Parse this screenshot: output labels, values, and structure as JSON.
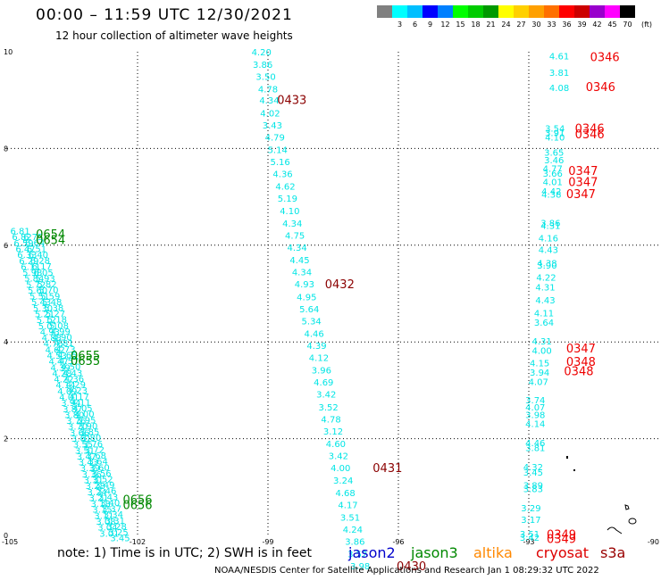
{
  "title": "00:00 – 11:59 UTC 12/30/2021",
  "subtitle": "12 hour collection of altimeter wave heights",
  "colorbar": {
    "unit": "(ft)",
    "labels": [
      "",
      "3",
      "6",
      "9",
      "12",
      "15",
      "18",
      "21",
      "24",
      "27",
      "30",
      "33",
      "36",
      "39",
      "42",
      "45",
      "70"
    ],
    "colors": [
      "#808080",
      "#00ffff",
      "#00bfff",
      "#0000ff",
      "#0080ff",
      "#00ff00",
      "#00cc00",
      "#009900",
      "#ffff00",
      "#ffd000",
      "#ffa000",
      "#ff7000",
      "#ff0000",
      "#cc0000",
      "#9900cc",
      "#ff00ff",
      "#000000"
    ]
  },
  "axes": {
    "x_ticks": [
      "-105",
      "-102",
      "-99",
      "-96",
      "-93",
      "-90"
    ],
    "y_ticks": [
      "0",
      "2",
      "4",
      "6",
      "8",
      "10"
    ],
    "x_range": [
      -105,
      -90
    ],
    "y_range": [
      0,
      10
    ]
  },
  "note": "note: 1) Time is in UTC; 2) SWH is in feet",
  "missions": [
    {
      "name": "jason2",
      "color": "#0000cc"
    },
    {
      "name": "jason3",
      "color": "#008800"
    },
    {
      "name": "altika",
      "color": "#ff8800"
    },
    {
      "name": "cryosat",
      "color": "#dd0000"
    },
    {
      "name": "s3a",
      "color": "#990000"
    }
  ],
  "footer": "NOAA/NESDIS Center for Satellite Applications and Research   Jan  1 08:29:32 UTC 2022",
  "tracks": [
    {
      "id": "track-middle",
      "color": "#00e5e5",
      "points": [
        {
          "lon": -99.15,
          "lat": 10.0,
          "v": "4.20"
        },
        {
          "lon": -99.12,
          "lat": 9.74,
          "v": "3.86"
        },
        {
          "lon": -99.05,
          "lat": 9.49,
          "v": "3.50"
        },
        {
          "lon": -99.0,
          "lat": 9.23,
          "v": "4.78"
        },
        {
          "lon": -98.97,
          "lat": 9.0,
          "v": "4.34"
        },
        {
          "lon": -98.95,
          "lat": 8.74,
          "v": "4.02"
        },
        {
          "lon": -98.9,
          "lat": 8.49,
          "v": "3.43"
        },
        {
          "lon": -98.84,
          "lat": 8.24,
          "v": "4.79"
        },
        {
          "lon": -98.78,
          "lat": 7.98,
          "v": "5.14"
        },
        {
          "lon": -98.72,
          "lat": 7.73,
          "v": "5.16"
        },
        {
          "lon": -98.66,
          "lat": 7.48,
          "v": "4.36"
        },
        {
          "lon": -98.6,
          "lat": 7.22,
          "v": "4.62"
        },
        {
          "lon": -98.55,
          "lat": 6.97,
          "v": "5.19"
        },
        {
          "lon": -98.5,
          "lat": 6.72,
          "v": "4.10"
        },
        {
          "lon": -98.44,
          "lat": 6.46,
          "v": "4.34"
        },
        {
          "lon": -98.38,
          "lat": 6.21,
          "v": "4.75"
        },
        {
          "lon": -98.33,
          "lat": 5.96,
          "v": "4.34"
        },
        {
          "lon": -98.27,
          "lat": 5.7,
          "v": "4.45"
        },
        {
          "lon": -98.22,
          "lat": 5.45,
          "v": "4.34"
        },
        {
          "lon": -98.16,
          "lat": 5.2,
          "v": "4.93"
        },
        {
          "lon": -98.11,
          "lat": 4.94,
          "v": "4.95"
        },
        {
          "lon": -98.05,
          "lat": 4.69,
          "v": "5.64"
        },
        {
          "lon": -98.0,
          "lat": 4.44,
          "v": "5.34"
        },
        {
          "lon": -97.94,
          "lat": 4.18,
          "v": "4.46"
        },
        {
          "lon": -97.88,
          "lat": 3.93,
          "v": "4.39"
        },
        {
          "lon": -97.83,
          "lat": 3.68,
          "v": "4.12"
        },
        {
          "lon": -97.77,
          "lat": 3.42,
          "v": "3.96"
        },
        {
          "lon": -97.72,
          "lat": 3.17,
          "v": "4.69"
        },
        {
          "lon": -97.66,
          "lat": 2.92,
          "v": "3.42"
        },
        {
          "lon": -97.61,
          "lat": 2.66,
          "v": "3.52"
        },
        {
          "lon": -97.55,
          "lat": 2.41,
          "v": "4.78"
        },
        {
          "lon": -97.5,
          "lat": 2.16,
          "v": "3.12"
        },
        {
          "lon": -97.44,
          "lat": 1.9,
          "v": "4.60"
        },
        {
          "lon": -97.38,
          "lat": 1.65,
          "v": "3.42"
        },
        {
          "lon": -97.33,
          "lat": 1.4,
          "v": "4.00"
        },
        {
          "lon": -97.27,
          "lat": 1.14,
          "v": "3.24"
        },
        {
          "lon": -97.22,
          "lat": 0.89,
          "v": "4.68"
        },
        {
          "lon": -97.16,
          "lat": 0.64,
          "v": "4.17"
        },
        {
          "lon": -97.11,
          "lat": 0.38,
          "v": "3.51"
        },
        {
          "lon": -97.05,
          "lat": 0.13,
          "v": "4.24"
        },
        {
          "lon": -97.0,
          "lat": -0.12,
          "v": "3.86"
        },
        {
          "lon": -96.94,
          "lat": -0.38,
          "v": "3.52"
        },
        {
          "lon": -96.88,
          "lat": -0.63,
          "v": "3.98"
        }
      ]
    },
    {
      "id": "track-right",
      "color": "#00e5e5",
      "points": [
        {
          "lon": -92.3,
          "lat": 9.92,
          "v": "4.61"
        },
        {
          "lon": -92.3,
          "lat": 9.58,
          "v": "3.81"
        },
        {
          "lon": -92.3,
          "lat": 9.26,
          "v": "4.08"
        },
        {
          "lon": -92.4,
          "lat": 8.42,
          "v": "3.54"
        },
        {
          "lon": -92.4,
          "lat": 8.33,
          "v": "3.91"
        },
        {
          "lon": -92.4,
          "lat": 8.24,
          "v": "4.10"
        },
        {
          "lon": -92.42,
          "lat": 7.92,
          "v": "3.65"
        },
        {
          "lon": -92.42,
          "lat": 7.77,
          "v": "3.46"
        },
        {
          "lon": -92.45,
          "lat": 7.59,
          "v": "4.77"
        },
        {
          "lon": -92.45,
          "lat": 7.49,
          "v": "3.66"
        },
        {
          "lon": -92.45,
          "lat": 7.32,
          "v": "4.01"
        },
        {
          "lon": -92.48,
          "lat": 7.12,
          "v": "4.42"
        },
        {
          "lon": -92.48,
          "lat": 7.06,
          "v": "4.38"
        },
        {
          "lon": -92.5,
          "lat": 6.47,
          "v": "3.86"
        },
        {
          "lon": -92.5,
          "lat": 6.41,
          "v": "4.31"
        },
        {
          "lon": -92.55,
          "lat": 6.15,
          "v": "4.16"
        },
        {
          "lon": -92.55,
          "lat": 5.91,
          "v": "4.43"
        },
        {
          "lon": -92.58,
          "lat": 5.64,
          "v": "4.38"
        },
        {
          "lon": -92.58,
          "lat": 5.59,
          "v": "3.90"
        },
        {
          "lon": -92.6,
          "lat": 5.34,
          "v": "4.22"
        },
        {
          "lon": -92.62,
          "lat": 5.14,
          "v": "4.31"
        },
        {
          "lon": -92.62,
          "lat": 4.87,
          "v": "4.43"
        },
        {
          "lon": -92.65,
          "lat": 4.6,
          "v": "4.11"
        },
        {
          "lon": -92.65,
          "lat": 4.41,
          "v": "3.64"
        },
        {
          "lon": -92.7,
          "lat": 4.02,
          "v": "4.31"
        },
        {
          "lon": -92.7,
          "lat": 3.83,
          "v": "4.00"
        },
        {
          "lon": -92.75,
          "lat": 3.57,
          "v": "4.15"
        },
        {
          "lon": -92.75,
          "lat": 3.38,
          "v": "3.94"
        },
        {
          "lon": -92.78,
          "lat": 3.18,
          "v": "4.07"
        },
        {
          "lon": -92.85,
          "lat": 2.8,
          "v": "3.74"
        },
        {
          "lon": -92.85,
          "lat": 2.66,
          "v": "4.07"
        },
        {
          "lon": -92.85,
          "lat": 2.5,
          "v": "3.98"
        },
        {
          "lon": -92.85,
          "lat": 2.32,
          "v": "4.14"
        },
        {
          "lon": -92.85,
          "lat": 1.92,
          "v": "4.46"
        },
        {
          "lon": -92.85,
          "lat": 1.82,
          "v": "3.81"
        },
        {
          "lon": -92.9,
          "lat": 1.42,
          "v": "4.32"
        },
        {
          "lon": -92.9,
          "lat": 1.31,
          "v": "3.45"
        },
        {
          "lon": -92.9,
          "lat": 1.04,
          "v": "3.89"
        },
        {
          "lon": -92.9,
          "lat": 0.97,
          "v": "3.83"
        },
        {
          "lon": -92.95,
          "lat": 0.57,
          "v": "3.29"
        },
        {
          "lon": -92.95,
          "lat": 0.33,
          "v": "3.17"
        },
        {
          "lon": -92.98,
          "lat": 0.04,
          "v": "3.51"
        },
        {
          "lon": -92.98,
          "lat": -0.04,
          "v": "3.42"
        }
      ]
    }
  ],
  "time_labels": [
    {
      "lon": -98.45,
      "lat": 9.01,
      "v": "0433",
      "color": "#8b0000"
    },
    {
      "lon": -97.35,
      "lat": 5.2,
      "v": "0432",
      "color": "#8b0000"
    },
    {
      "lon": -96.25,
      "lat": 1.4,
      "v": "0431",
      "color": "#8b0000"
    },
    {
      "lon": -95.7,
      "lat": -0.63,
      "v": "0430",
      "color": "#8b0000"
    },
    {
      "lon": -91.25,
      "lat": 9.9,
      "v": "0346",
      "color": "#ee0000"
    },
    {
      "lon": -91.35,
      "lat": 9.28,
      "v": "0346",
      "color": "#ee0000"
    },
    {
      "lon": -91.6,
      "lat": 8.42,
      "v": "0346",
      "color": "#ee0000"
    },
    {
      "lon": -91.6,
      "lat": 8.3,
      "v": "0346",
      "color": "#ee0000"
    },
    {
      "lon": -91.75,
      "lat": 7.55,
      "v": "0347",
      "color": "#ee0000"
    },
    {
      "lon": -91.75,
      "lat": 7.32,
      "v": "0347",
      "color": "#ee0000"
    },
    {
      "lon": -91.8,
      "lat": 7.07,
      "v": "0347",
      "color": "#ee0000"
    },
    {
      "lon": -91.8,
      "lat": 3.87,
      "v": "0347",
      "color": "#ee0000"
    },
    {
      "lon": -91.8,
      "lat": 3.6,
      "v": "0348",
      "color": "#ee0000"
    },
    {
      "lon": -91.85,
      "lat": 3.4,
      "v": "0348",
      "color": "#ee0000"
    },
    {
      "lon": -92.25,
      "lat": 0.03,
      "v": "0349",
      "color": "#ee0000"
    },
    {
      "lon": -92.25,
      "lat": -0.06,
      "v": "0349",
      "color": "#ee0000"
    },
    {
      "lon": -104.0,
      "lat": 6.24,
      "v": "0654",
      "color": "#008800"
    },
    {
      "lon": -104.0,
      "lat": 6.12,
      "v": "0654",
      "color": "#008800"
    },
    {
      "lon": -103.2,
      "lat": 3.73,
      "v": "0655",
      "color": "#008800"
    },
    {
      "lon": -103.2,
      "lat": 3.62,
      "v": "0655",
      "color": "#008800"
    },
    {
      "lon": -102.0,
      "lat": 0.75,
      "v": "0656",
      "color": "#008800"
    },
    {
      "lon": -102.0,
      "lat": 0.64,
      "v": "0656",
      "color": "#008800"
    }
  ],
  "diagonal_tracks": {
    "color": "#00e5e5",
    "labels_track1": [
      "6.81",
      "6.82",
      "6.59",
      "6.47",
      "6.33",
      "6.29",
      "6.11",
      "5.98",
      "5.84",
      "5.72",
      "5.60",
      "5.51",
      "5.43",
      "5.30",
      "5.21",
      "5.12",
      "5.01",
      "4.93",
      "4.88",
      "4.76",
      "4.62",
      "4.53",
      "4.47",
      "4.39",
      "4.28",
      "4.22",
      "4.14",
      "4.09",
      "4.01",
      "3.94",
      "3.87",
      "3.80",
      "3.76",
      "3.70",
      "3.66",
      "3.61",
      "3.55",
      "3.51",
      "3.47",
      "3.43",
      "3.39",
      "3.36",
      "3.31",
      "3.28",
      "3.24",
      "3.21",
      "3.18",
      "3.15",
      "3.11",
      "3.08",
      "3.04",
      "3.01"
    ],
    "labels_track2": [
      "6.75",
      "6.64",
      "6.51",
      "6.40",
      "6.28",
      "6.17",
      "6.05",
      "5.93",
      "5.82",
      "5.70",
      "5.59",
      "5.48",
      "5.38",
      "5.27",
      "5.18",
      "5.08",
      "4.99",
      "4.90",
      "4.81",
      "4.73",
      "4.65",
      "4.57",
      "4.50",
      "4.43",
      "4.36",
      "4.29",
      "4.23",
      "4.17",
      "4.11",
      "4.05",
      "4.00",
      "3.95",
      "3.90",
      "3.85",
      "3.80",
      "3.76",
      "3.72",
      "3.68",
      "3.64",
      "3.60",
      "3.56",
      "3.52",
      "3.49",
      "3.46",
      "3.43",
      "3.40",
      "3.37",
      "3.34",
      "3.31",
      "3.28",
      "3.25",
      "3.45"
    ]
  }
}
